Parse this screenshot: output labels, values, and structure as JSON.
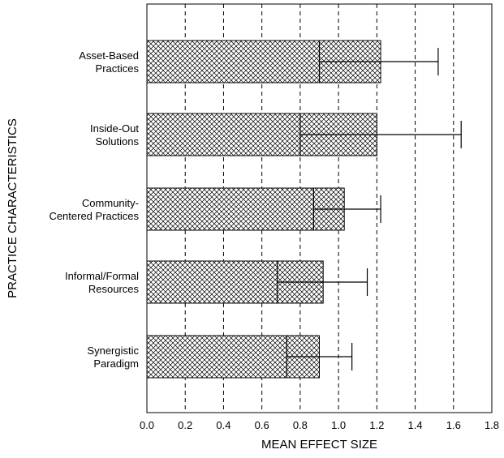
{
  "chart_data": {
    "type": "bar",
    "orientation": "horizontal",
    "xlabel": "MEAN EFFECT SIZE",
    "ylabel": "PRACTICE CHARACTERISTICS",
    "xlim": [
      0,
      1.8
    ],
    "xticks": [
      "0.0",
      "0.2",
      "0.4",
      "0.6",
      "0.8",
      "1.0",
      "1.2",
      "1.4",
      "1.6",
      "1.8"
    ],
    "grid": "vertical dashed",
    "categories": [
      [
        "Asset-Based",
        "Practices"
      ],
      [
        "Inside-Out",
        "Solutions"
      ],
      [
        "Community-",
        "Centered Practices"
      ],
      [
        "Informal/Formal",
        "Resources"
      ],
      [
        "Synergistic",
        "Paradigm"
      ]
    ],
    "values": [
      1.22,
      1.2,
      1.03,
      0.92,
      0.9
    ],
    "error_bars": [
      {
        "low": 0.9,
        "high": 1.52
      },
      {
        "low": 0.8,
        "high": 1.64
      },
      {
        "low": 0.87,
        "high": 1.22
      },
      {
        "low": 0.68,
        "high": 1.15
      },
      {
        "low": 0.73,
        "high": 1.07
      }
    ],
    "bar_fill": "crosshatch"
  }
}
